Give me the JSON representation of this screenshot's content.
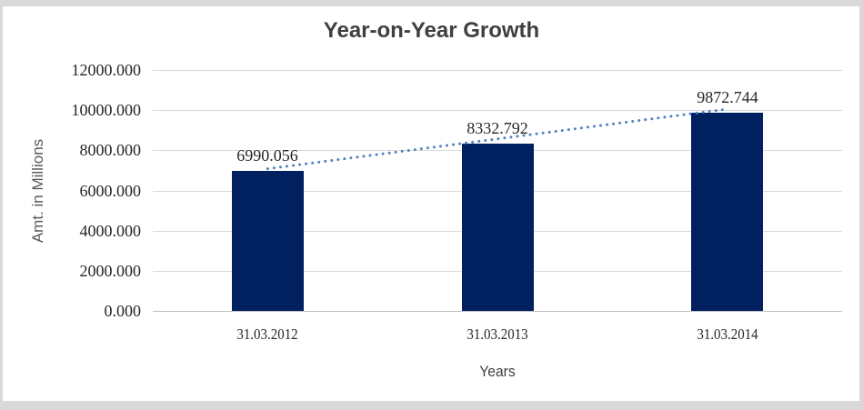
{
  "chart_data": {
    "type": "bar",
    "title": "Year-on-Year Growth",
    "xlabel": "Years",
    "ylabel": "Amt. in Millions",
    "categories": [
      "31.03.2012",
      "31.03.2013",
      "31.03.2014"
    ],
    "values": [
      6990.056,
      8332.792,
      9872.744
    ],
    "value_labels": [
      "6990.056",
      "8332.792",
      "9872.744"
    ],
    "ylim": [
      0,
      12000
    ],
    "ytick_step": 2000,
    "ytick_labels": [
      "0.000",
      "2000.000",
      "4000.000",
      "6000.000",
      "8000.000",
      "10000.000",
      "12000.000"
    ],
    "grid": true,
    "legend_position": "none",
    "trendline": {
      "type": "linear",
      "style": "dotted"
    },
    "colors": {
      "bar": "#002060",
      "trendline": "#4F81BD",
      "gridline": "#D9D9D9",
      "axis_line": "#BFBFBF",
      "title_text": "#3F3F3F",
      "axis_title_text": "#595959",
      "tick_text": "#262626",
      "frame": "#D9D9D9",
      "background": "#FFFFFF"
    }
  }
}
